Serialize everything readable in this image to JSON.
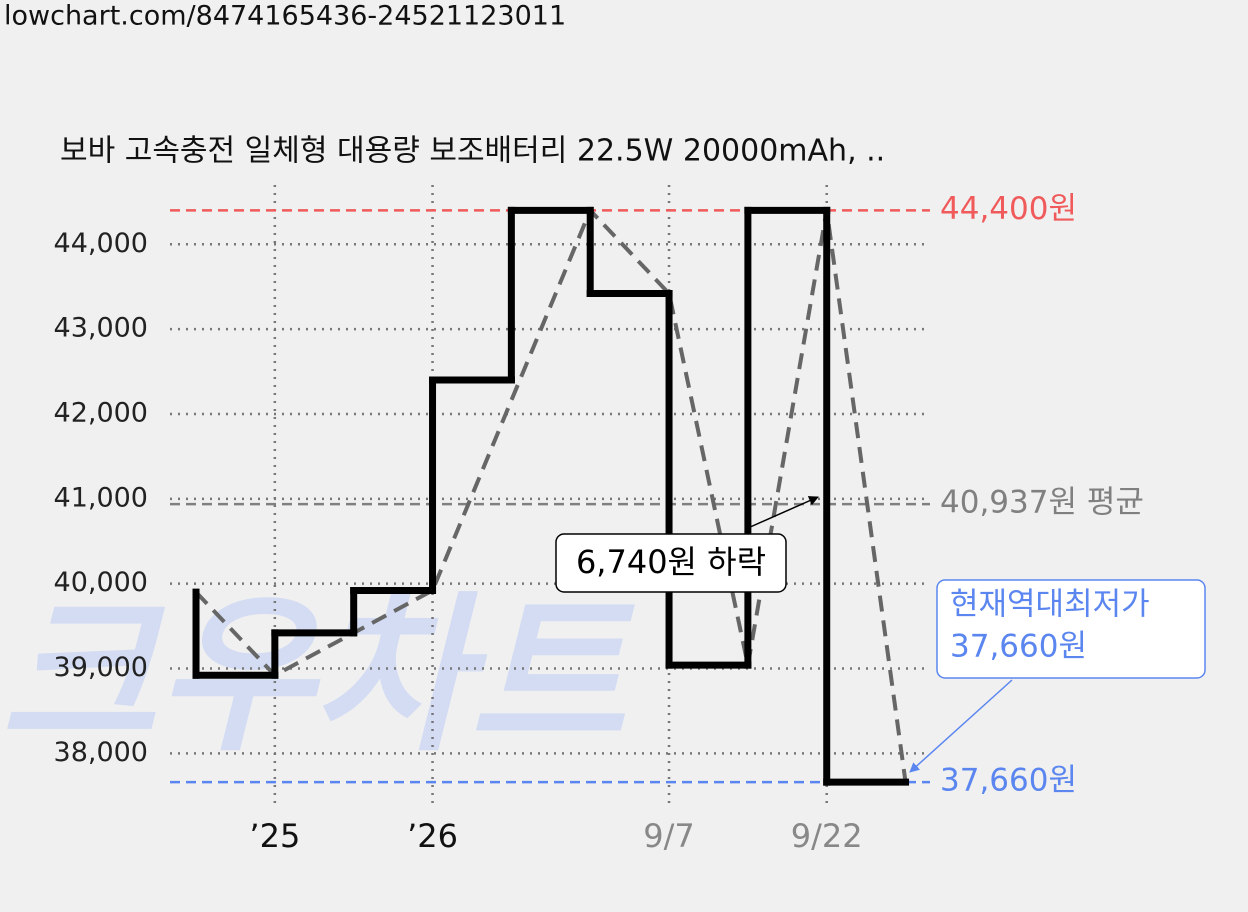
{
  "header": {
    "url": "lowchart.com/8474165436-24521123011"
  },
  "chart_data": {
    "type": "step",
    "title": "보바 고속충전 일체형 대용량 보조배터리 22.5W 20000mAh, ..",
    "watermark": "크우차트",
    "xlim": [
      -0.33,
      9.31
    ],
    "xticks": [
      {
        "value": 1,
        "label": "’25",
        "color": "#111111"
      },
      {
        "value": 3,
        "label": "’26",
        "color": "#111111"
      },
      {
        "value": 6,
        "label": "9/7",
        "color": "#888888"
      },
      {
        "value": 8,
        "label": "9/22",
        "color": "#888888"
      }
    ],
    "ylim": [
      37450,
      44640
    ],
    "yticks": [
      {
        "value": 38000,
        "label": "38,000"
      },
      {
        "value": 39000,
        "label": "39,000"
      },
      {
        "value": 40000,
        "label": "40,000"
      },
      {
        "value": 41000,
        "label": "41,000"
      },
      {
        "value": 42000,
        "label": "42,000"
      },
      {
        "value": 43000,
        "label": "43,000"
      },
      {
        "value": 44000,
        "label": "44,000"
      }
    ],
    "grid": true,
    "series": [
      {
        "style": "step",
        "color": "#000000",
        "x": [
          0,
          1,
          2,
          3,
          4,
          5,
          6,
          7,
          8,
          9
        ],
        "values": [
          39900,
          38920,
          39420,
          39920,
          42400,
          44400,
          43420,
          39040,
          44400,
          37660
        ]
      },
      {
        "style": "dashed",
        "color": "#666666",
        "x": [
          0,
          1,
          3,
          5,
          6,
          7,
          8,
          9
        ],
        "values": [
          39900,
          38920,
          39920,
          44400,
          43420,
          39040,
          44400,
          37660
        ]
      }
    ],
    "reference_lines": [
      {
        "value": 44400,
        "label": "44,400원",
        "color": "#f05a5a"
      },
      {
        "value": 40937,
        "label": "40,937원 평균",
        "color": "#808080"
      },
      {
        "value": 37660,
        "label": "37,660원",
        "color": "#5b86f0"
      }
    ],
    "annotations": [
      {
        "text": "6,740원 하락"
      },
      {
        "lines": [
          "현재역대최저가",
          "37,660원"
        ],
        "color": "#5b86f0"
      }
    ]
  }
}
